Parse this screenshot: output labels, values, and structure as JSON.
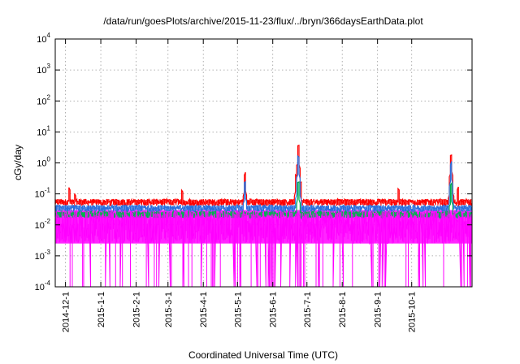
{
  "chart_data": {
    "type": "line",
    "title": "/data/run/goesPlots/archive/2015-11-23/flux/../bryn/366daysEarthData.plot",
    "xlabel": "Coordinated Universal Time (UTC)",
    "ylabel": "cGy/day",
    "yscale": "log",
    "ylim": [
      0.0001,
      10000
    ],
    "xlim": [
      "2014-11-22",
      "2015-11-23"
    ],
    "grid": true,
    "legend": "none",
    "y_ticks": [
      {
        "base": "10",
        "exp": "-4",
        "value": 0.0001
      },
      {
        "base": "10",
        "exp": "-3",
        "value": 0.001
      },
      {
        "base": "10",
        "exp": "-2",
        "value": 0.01
      },
      {
        "base": "10",
        "exp": "-1",
        "value": 0.1
      },
      {
        "base": "10",
        "exp": "0",
        "value": 1
      },
      {
        "base": "10",
        "exp": "1",
        "value": 10
      },
      {
        "base": "10",
        "exp": "2",
        "value": 100
      },
      {
        "base": "10",
        "exp": "3",
        "value": 1000
      },
      {
        "base": "10",
        "exp": "4",
        "value": 10000
      }
    ],
    "x_ticks": [
      {
        "label": "2014-12-1",
        "date": "2014-12-01"
      },
      {
        "label": "2015-1-1",
        "date": "2015-01-01"
      },
      {
        "label": "2015-2-1",
        "date": "2015-02-01"
      },
      {
        "label": "2015-3-1",
        "date": "2015-03-01"
      },
      {
        "label": "2015-4-1",
        "date": "2015-04-01"
      },
      {
        "label": "2015-5-1",
        "date": "2015-05-01"
      },
      {
        "label": "2015-6-1",
        "date": "2015-06-01"
      },
      {
        "label": "2015-7-1",
        "date": "2015-07-01"
      },
      {
        "label": "2015-8-1",
        "date": "2015-08-01"
      },
      {
        "label": "2015-9-1",
        "date": "2015-09-01"
      },
      {
        "label": "2015-10-1",
        "date": "2015-10-01"
      }
    ],
    "series": [
      {
        "color": "#ff0000",
        "baseline": 0.055,
        "peaks": [
          {
            "date": "2014-12-05",
            "value": 0.18
          },
          {
            "date": "2014-12-10",
            "value": 0.12
          },
          {
            "date": "2015-03-14",
            "value": 0.15
          },
          {
            "date": "2015-05-08",
            "value": 0.55
          },
          {
            "date": "2015-06-22",
            "value": 0.5
          },
          {
            "date": "2015-06-24",
            "value": 4.5
          },
          {
            "date": "2015-06-26",
            "value": 0.3
          },
          {
            "date": "2015-09-20",
            "value": 0.18
          },
          {
            "date": "2015-11-05",
            "value": 2.2
          },
          {
            "date": "2015-11-11",
            "value": 0.18
          }
        ]
      },
      {
        "color": "#2a6fdc",
        "baseline": 0.035,
        "peaks": [
          {
            "date": "2015-05-08",
            "value": 0.3
          },
          {
            "date": "2015-06-24",
            "value": 2.0
          },
          {
            "date": "2015-11-05",
            "value": 1.2
          }
        ]
      },
      {
        "color": "#00b050",
        "baseline": 0.022,
        "peaks": [
          {
            "date": "2015-06-24",
            "value": 0.3
          },
          {
            "date": "2015-11-05",
            "value": 0.25
          }
        ]
      },
      {
        "color": "#ff00ff",
        "baseline_range": [
          0.0025,
          0.03
        ],
        "dropouts_to": 0.0001
      }
    ]
  }
}
